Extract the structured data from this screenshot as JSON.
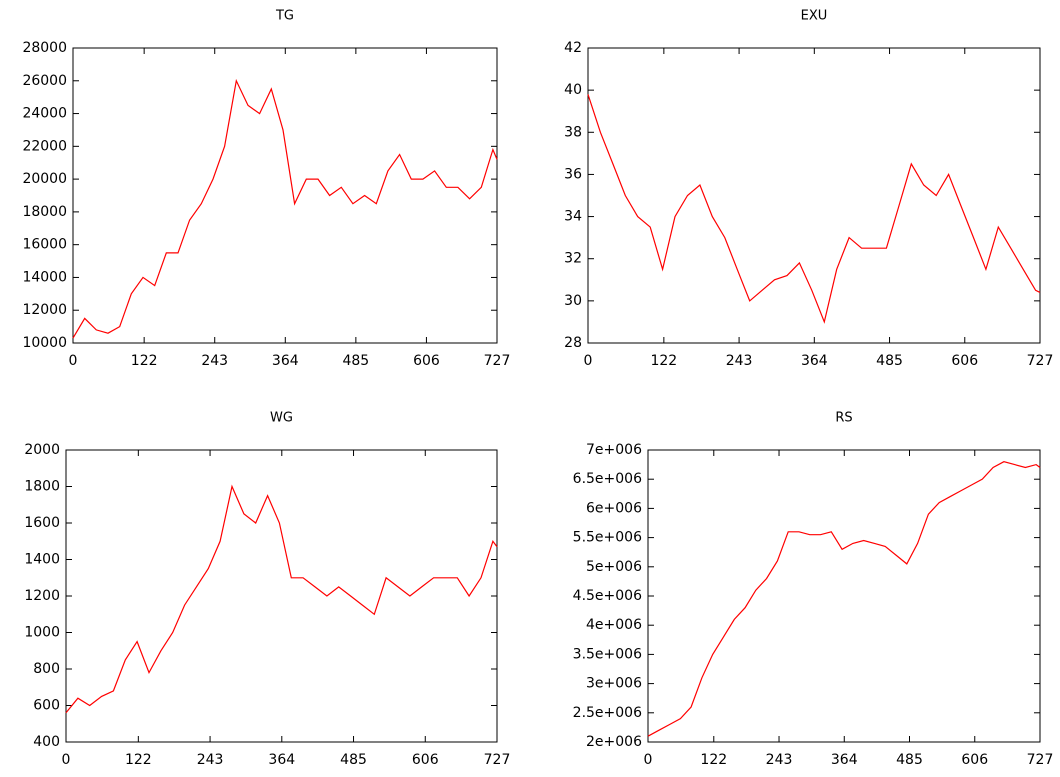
{
  "chart_data": [
    {
      "type": "line",
      "title": "TG",
      "color": "#ff0000",
      "x": [
        0,
        20,
        40,
        60,
        80,
        100,
        120,
        140,
        160,
        180,
        200,
        220,
        240,
        260,
        280,
        300,
        320,
        340,
        360,
        380,
        400,
        420,
        440,
        460,
        480,
        500,
        520,
        540,
        560,
        580,
        600,
        620,
        640,
        660,
        680,
        700,
        720,
        727
      ],
      "values": [
        10300,
        11500,
        10800,
        10600,
        11000,
        13000,
        14000,
        13500,
        15500,
        15500,
        17500,
        18500,
        20000,
        22000,
        26000,
        24500,
        24000,
        25500,
        23000,
        18500,
        20000,
        20000,
        19000,
        19500,
        18500,
        19000,
        18500,
        20500,
        21500,
        20000,
        20000,
        20500,
        19500,
        19500,
        18800,
        19500,
        21800,
        21200
      ],
      "xlim": [
        0,
        727
      ],
      "xticks": [
        0,
        122,
        243,
        364,
        485,
        606,
        727
      ],
      "ylim": [
        10000,
        28000
      ],
      "yticks": [
        10000,
        12000,
        14000,
        16000,
        18000,
        20000,
        22000,
        24000,
        26000,
        28000
      ]
    },
    {
      "type": "line",
      "title": "EXU",
      "color": "#ff0000",
      "x": [
        0,
        20,
        40,
        60,
        80,
        100,
        120,
        140,
        160,
        180,
        200,
        220,
        240,
        260,
        280,
        300,
        320,
        340,
        360,
        380,
        400,
        420,
        440,
        460,
        480,
        500,
        520,
        540,
        560,
        580,
        600,
        620,
        640,
        660,
        680,
        700,
        720,
        727
      ],
      "values": [
        39.8,
        38,
        36.5,
        35,
        34,
        33.5,
        31.5,
        34,
        35,
        35.5,
        34,
        33,
        31.5,
        30,
        30.5,
        31,
        31.2,
        31.8,
        30.5,
        29,
        31.5,
        33,
        32.5,
        32.5,
        32.5,
        34.5,
        36.5,
        35.5,
        35,
        36,
        34.5,
        33,
        31.5,
        33.5,
        32.5,
        31.5,
        30.5,
        30.4
      ],
      "xlim": [
        0,
        727
      ],
      "xticks": [
        0,
        122,
        243,
        364,
        485,
        606,
        727
      ],
      "ylim": [
        28,
        42
      ],
      "yticks": [
        28,
        30,
        32,
        34,
        36,
        38,
        40,
        42
      ]
    },
    {
      "type": "line",
      "title": "WG",
      "color": "#ff0000",
      "x": [
        0,
        20,
        40,
        60,
        80,
        100,
        120,
        140,
        160,
        180,
        200,
        220,
        240,
        260,
        280,
        300,
        320,
        340,
        360,
        380,
        400,
        420,
        440,
        460,
        480,
        500,
        520,
        540,
        560,
        580,
        600,
        620,
        640,
        660,
        680,
        700,
        720,
        727
      ],
      "values": [
        560,
        640,
        600,
        650,
        680,
        850,
        950,
        780,
        900,
        1000,
        1150,
        1250,
        1350,
        1500,
        1800,
        1650,
        1600,
        1750,
        1600,
        1300,
        1300,
        1250,
        1200,
        1250,
        1200,
        1150,
        1100,
        1300,
        1250,
        1200,
        1250,
        1300,
        1300,
        1300,
        1200,
        1300,
        1500,
        1470
      ],
      "xlim": [
        0,
        727
      ],
      "xticks": [
        0,
        122,
        243,
        364,
        485,
        606,
        727
      ],
      "ylim": [
        400,
        2000
      ],
      "yticks": [
        400,
        600,
        800,
        1000,
        1200,
        1400,
        1600,
        1800,
        2000
      ]
    },
    {
      "type": "line",
      "title": "RS",
      "color": "#ff0000",
      "x": [
        0,
        20,
        40,
        60,
        80,
        100,
        120,
        140,
        160,
        180,
        200,
        220,
        240,
        260,
        280,
        300,
        320,
        340,
        360,
        380,
        400,
        420,
        440,
        460,
        480,
        500,
        520,
        540,
        560,
        580,
        600,
        620,
        640,
        660,
        680,
        700,
        720,
        727
      ],
      "values": [
        2100000,
        2200000,
        2300000,
        2400000,
        2600000,
        3100000,
        3500000,
        3800000,
        4100000,
        4300000,
        4600000,
        4800000,
        5100000,
        5600000,
        5600000,
        5550000,
        5550000,
        5600000,
        5300000,
        5400000,
        5450000,
        5400000,
        5350000,
        5200000,
        5050000,
        5400000,
        5900000,
        6100000,
        6200000,
        6300000,
        6400000,
        6500000,
        6700000,
        6800000,
        6750000,
        6700000,
        6750000,
        6700000
      ],
      "xlim": [
        0,
        727
      ],
      "xticks": [
        0,
        122,
        243,
        364,
        485,
        606,
        727
      ],
      "ylim": [
        2000000,
        7000000
      ],
      "yticks": [
        {
          "value": 2000000,
          "label": "2e+006"
        },
        {
          "value": 2500000,
          "label": "2.5e+006"
        },
        {
          "value": 3000000,
          "label": "3e+006"
        },
        {
          "value": 3500000,
          "label": "3.5e+006"
        },
        {
          "value": 4000000,
          "label": "4e+006"
        },
        {
          "value": 4500000,
          "label": "4.5e+006"
        },
        {
          "value": 5000000,
          "label": "5e+006"
        },
        {
          "value": 5500000,
          "label": "5.5e+006"
        },
        {
          "value": 6000000,
          "label": "6e+006"
        },
        {
          "value": 6500000,
          "label": "6.5e+006"
        },
        {
          "value": 7000000,
          "label": "7e+006"
        }
      ]
    }
  ]
}
